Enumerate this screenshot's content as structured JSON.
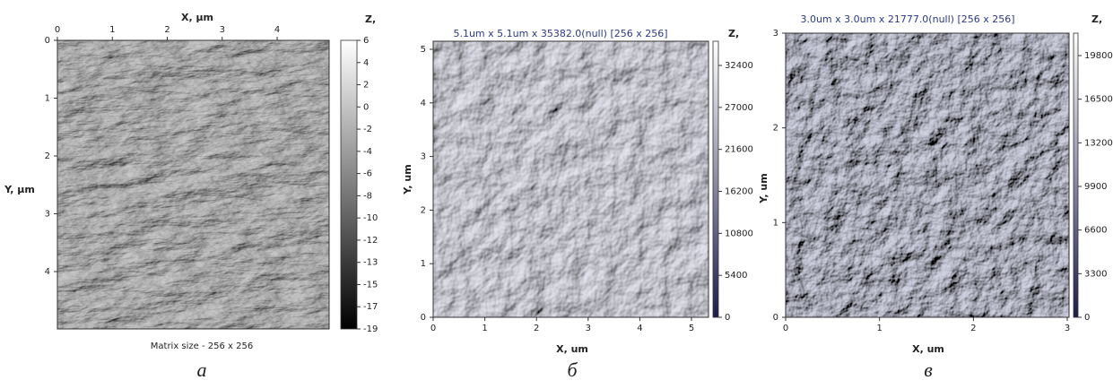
{
  "panels": [
    {
      "x_axis_title": "X, µm",
      "y_axis_title": "Y, µm",
      "x_ticks": [
        0,
        1,
        2,
        3,
        4
      ],
      "y_ticks": [
        0,
        1,
        2,
        3,
        4
      ],
      "colorbar_title": "Z,",
      "colorbar_ticks": [
        6,
        4,
        2,
        0,
        -2,
        -4,
        -6,
        -8,
        -10,
        -12,
        -13,
        -15,
        -17,
        -19
      ],
      "footer": "Matrix size - 256 x 256",
      "caption": "а"
    },
    {
      "title": "5.1um x 5.1um x 35382.0(null) [256 x 256]",
      "x_axis_title": "X, um",
      "y_axis_title": "Y, um",
      "x_ticks": [
        0,
        1,
        2,
        3,
        4,
        5
      ],
      "y_ticks": [
        0,
        1,
        2,
        3,
        4,
        5
      ],
      "colorbar_title": "Z,",
      "colorbar_ticks": [
        32400,
        27000,
        21600,
        16200,
        10800,
        5400,
        0
      ],
      "caption": "б"
    },
    {
      "title": "3.0um x 3.0um x 21777.0(null) [256 x 256]",
      "x_axis_title": "X, um",
      "y_axis_title": "Y, um",
      "x_ticks": [
        0,
        1,
        2,
        3
      ],
      "y_ticks": [
        0,
        1,
        2,
        3
      ],
      "colorbar_title": "Z,",
      "colorbar_ticks": [
        19800,
        16500,
        13200,
        9900,
        6600,
        3300,
        0
      ],
      "caption": "в"
    }
  ]
}
